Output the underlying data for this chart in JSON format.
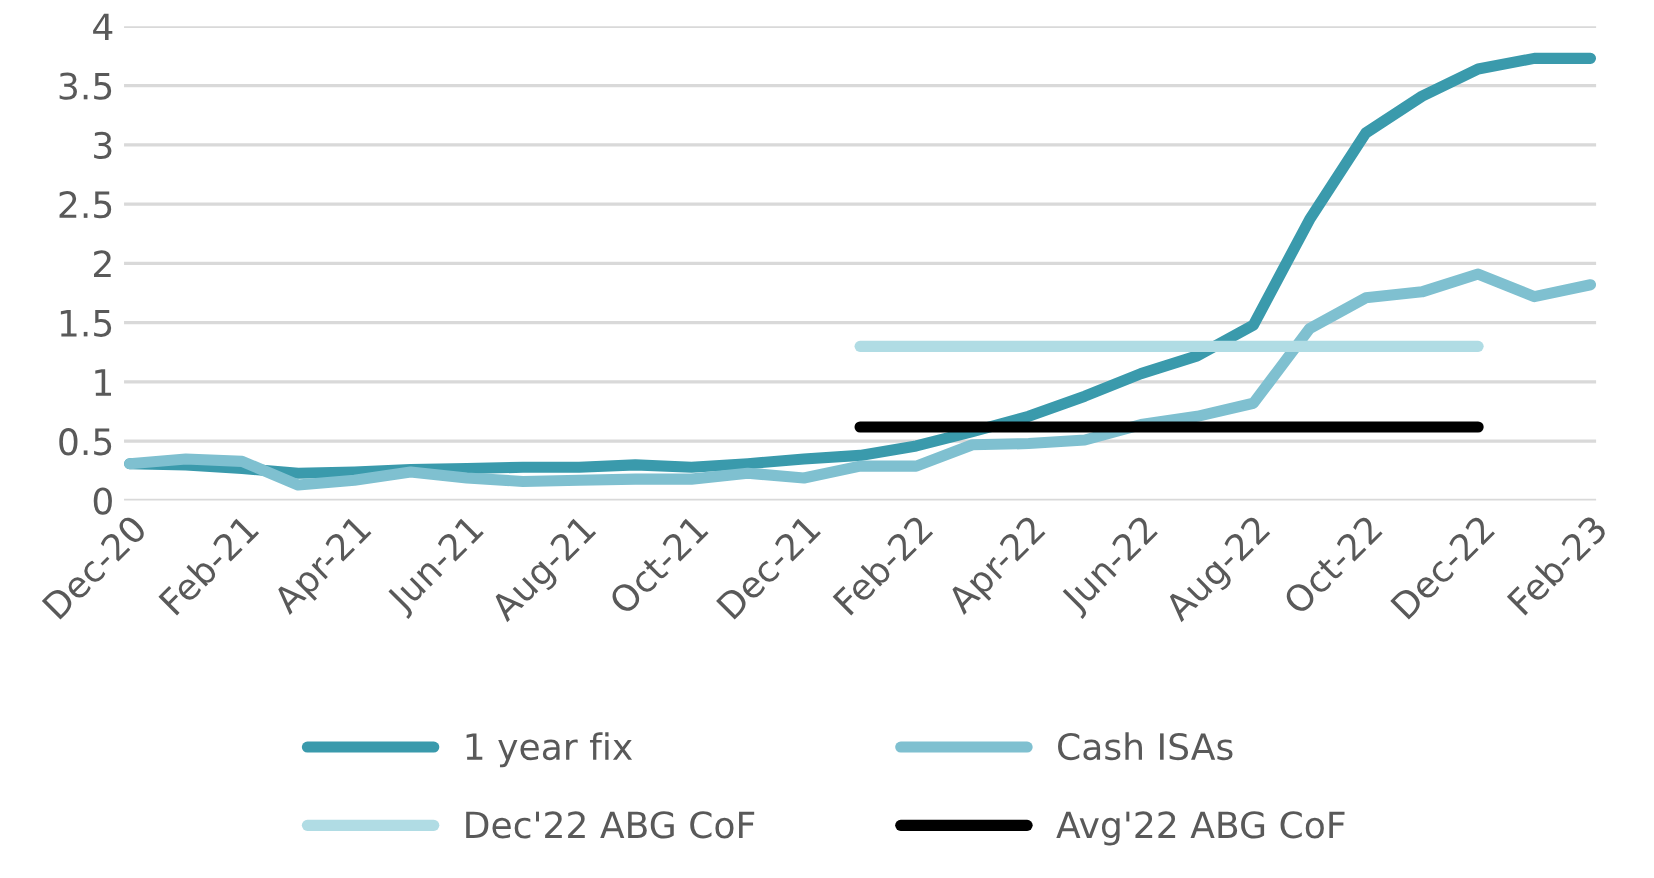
{
  "chart_data": {
    "type": "line",
    "categories": [
      "Dec-20",
      null,
      "Feb-21",
      null,
      "Apr-21",
      null,
      "Jun-21",
      null,
      "Aug-21",
      null,
      "Oct-21",
      null,
      "Dec-21",
      null,
      "Feb-22",
      null,
      "Apr-22",
      null,
      "Jun-22",
      null,
      "Aug-22",
      null,
      "Oct-22",
      null,
      "Dec-22",
      null,
      "Feb-23"
    ],
    "series": [
      {
        "name": "1 year fix",
        "color": "#3a9aac",
        "values": [
          0.31,
          0.3,
          0.27,
          0.23,
          0.24,
          0.26,
          0.27,
          0.28,
          0.28,
          0.3,
          0.28,
          0.31,
          0.35,
          0.38,
          0.46,
          0.58,
          0.71,
          0.88,
          1.07,
          1.22,
          1.48,
          2.37,
          3.1,
          3.41,
          3.64,
          3.73,
          3.73
        ]
      },
      {
        "name": "Cash ISAs",
        "color": "#7fc0d0",
        "values": [
          0.31,
          0.35,
          0.33,
          0.13,
          0.17,
          0.24,
          0.19,
          0.16,
          0.17,
          0.18,
          0.18,
          0.23,
          0.19,
          0.29,
          0.29,
          0.47,
          0.48,
          0.51,
          0.64,
          0.71,
          0.82,
          1.45,
          1.71,
          1.76,
          1.91,
          1.72,
          1.82
        ]
      },
      {
        "name": "Dec'22 ABG CoF",
        "color": "#b0dce4",
        "values": [
          null,
          null,
          null,
          null,
          null,
          null,
          null,
          null,
          null,
          null,
          null,
          null,
          null,
          1.3,
          1.3,
          1.3,
          1.3,
          1.3,
          1.3,
          1.3,
          1.3,
          1.3,
          1.3,
          1.3,
          1.3,
          null,
          null
        ]
      },
      {
        "name": "Avg'22 ABG CoF",
        "color": "#000000",
        "values": [
          null,
          null,
          null,
          null,
          null,
          null,
          null,
          null,
          null,
          null,
          null,
          null,
          null,
          0.62,
          0.62,
          0.62,
          0.62,
          0.62,
          0.62,
          0.62,
          0.62,
          0.62,
          0.62,
          0.62,
          0.62,
          null,
          null
        ]
      }
    ],
    "ylim": [
      0,
      4
    ],
    "yticks": [
      0,
      0.5,
      1,
      1.5,
      2,
      2.5,
      3,
      3.5,
      4
    ],
    "grid": "y",
    "legend": "bottom"
  }
}
